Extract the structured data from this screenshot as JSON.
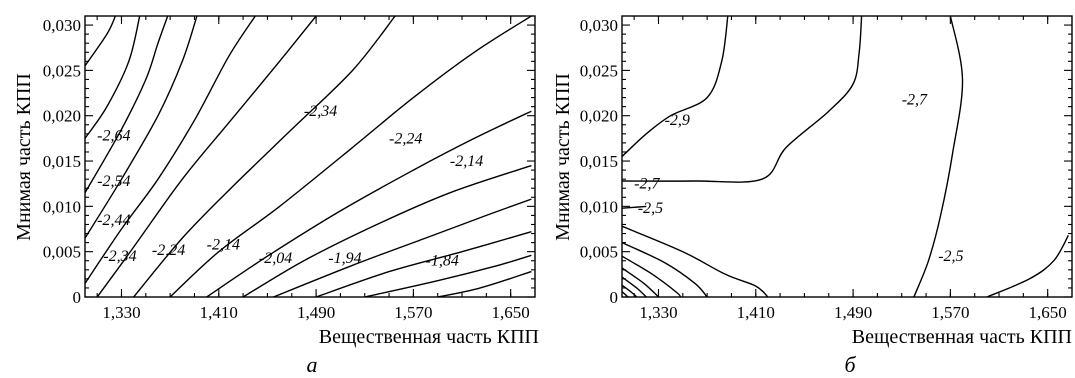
{
  "chart_data": [
    {
      "type": "contour",
      "panel_label": "а",
      "xlabel": "Вещественная часть КПП",
      "ylabel": "Мнимая часть КПП",
      "xlim": [
        1.3,
        1.67
      ],
      "ylim": [
        0,
        0.031
      ],
      "x_ticks": [
        "1,330",
        "1,410",
        "1,490",
        "1,570",
        "1,650"
      ],
      "x_tick_values": [
        1.33,
        1.41,
        1.49,
        1.57,
        1.65
      ],
      "y_ticks": [
        "0",
        "0,005",
        "0,010",
        "0,015",
        "0,020",
        "0,025",
        "0,030"
      ],
      "y_tick_values": [
        0,
        0.005,
        0.01,
        0.015,
        0.02,
        0.025,
        0.03
      ],
      "contours": [
        {
          "points": [
            [
              1.3,
              0.0255
            ],
            [
              1.318,
              0.029
            ],
            [
              1.325,
              0.031
            ]
          ]
        },
        {
          "points": [
            [
              1.3,
              0.0175
            ],
            [
              1.318,
              0.021
            ],
            [
              1.336,
              0.026
            ],
            [
              1.345,
              0.031
            ]
          ]
        },
        {
          "label": "-2,64",
          "label_at": [
            1.31,
            0.0178
          ],
          "points": [
            [
              1.3,
              0.0115
            ],
            [
              1.33,
              0.0185
            ],
            [
              1.35,
              0.024
            ],
            [
              1.36,
              0.028
            ],
            [
              1.368,
              0.031
            ]
          ]
        },
        {
          "label": "-2,54",
          "label_at": [
            1.31,
            0.0128
          ],
          "points": [
            [
              1.3,
              0.0065
            ],
            [
              1.33,
              0.013
            ],
            [
              1.36,
              0.02
            ],
            [
              1.38,
              0.026
            ],
            [
              1.392,
              0.031
            ]
          ]
        },
        {
          "label": "-2,44",
          "label_at": [
            1.31,
            0.0085
          ],
          "points": [
            [
              1.3,
              0.0015
            ],
            [
              1.33,
              0.0075
            ],
            [
              1.36,
              0.013
            ],
            [
              1.39,
              0.0195
            ],
            [
              1.418,
              0.0265
            ],
            [
              1.44,
              0.031
            ]
          ]
        },
        {
          "label": "-2,34",
          "label_at": [
            1.315,
            0.0045
          ],
          "points": [
            [
              1.31,
              0
            ],
            [
              1.34,
              0.0055
            ],
            [
              1.38,
              0.013
            ],
            [
              1.42,
              0.0195
            ],
            [
              1.46,
              0.026
            ],
            [
              1.49,
              0.031
            ]
          ]
        },
        {
          "label": "-2,24",
          "label_at": [
            1.355,
            0.0052
          ],
          "points": [
            [
              1.34,
              0
            ],
            [
              1.38,
              0.0065
            ],
            [
              1.42,
              0.012
            ],
            [
              1.47,
              0.0185
            ],
            [
              1.52,
              0.025
            ],
            [
              1.555,
              0.031
            ]
          ]
        },
        {
          "label": "-2,14",
          "label_at": [
            1.4,
            0.0058
          ],
          "points": [
            [
              1.37,
              0
            ],
            [
              1.41,
              0.005
            ],
            [
              1.46,
              0.01
            ],
            [
              1.52,
              0.0165
            ],
            [
              1.57,
              0.022
            ],
            [
              1.62,
              0.027
            ],
            [
              1.667,
              0.031
            ]
          ]
        },
        {
          "points": [
            [
              1.4,
              0
            ],
            [
              1.45,
              0.0045
            ],
            [
              1.51,
              0.0095
            ],
            [
              1.57,
              0.014
            ],
            [
              1.62,
              0.0175
            ],
            [
              1.667,
              0.0205
            ]
          ]
        },
        {
          "points": [
            [
              1.43,
              0
            ],
            [
              1.48,
              0.004
            ],
            [
              1.54,
              0.008
            ],
            [
              1.6,
              0.0115
            ],
            [
              1.667,
              0.0145
            ]
          ]
        },
        {
          "points": [
            [
              1.455,
              0
            ],
            [
              1.52,
              0.0035
            ],
            [
              1.58,
              0.0065
            ],
            [
              1.63,
              0.009
            ],
            [
              1.667,
              0.0108
            ]
          ]
        },
        {
          "points": [
            [
              1.49,
              0
            ],
            [
              1.55,
              0.0028
            ],
            [
              1.61,
              0.005
            ],
            [
              1.667,
              0.0072
            ]
          ]
        },
        {
          "points": [
            [
              1.53,
              0
            ],
            [
              1.59,
              0.0018
            ],
            [
              1.64,
              0.0035
            ],
            [
              1.667,
              0.0046
            ]
          ]
        },
        {
          "points": [
            [
              1.59,
              0
            ],
            [
              1.625,
              0.001
            ],
            [
              1.667,
              0.0028
            ]
          ]
        }
      ],
      "floating_labels": [
        {
          "text": "-2,34",
          "at": [
            1.48,
            0.0205
          ]
        },
        {
          "text": "-2,24",
          "at": [
            1.55,
            0.0175
          ]
        },
        {
          "text": "-2,14",
          "at": [
            1.6,
            0.015
          ]
        },
        {
          "text": "-2,04",
          "at": [
            1.443,
            0.0043
          ]
        },
        {
          "text": "-1,94",
          "at": [
            1.5,
            0.0043
          ]
        },
        {
          "text": "-1,84",
          "at": [
            1.58,
            0.004
          ]
        }
      ]
    },
    {
      "type": "contour",
      "panel_label": "б",
      "xlabel": "Вещественная часть КПП",
      "ylabel": "Мнимая часть КПП",
      "xlim": [
        1.3,
        1.67
      ],
      "ylim": [
        0,
        0.031
      ],
      "x_ticks": [
        "1,330",
        "1,410",
        "1,490",
        "1,570",
        "1,650"
      ],
      "x_tick_values": [
        1.33,
        1.41,
        1.49,
        1.57,
        1.65
      ],
      "y_ticks": [
        "0",
        "0,005",
        "0,010",
        "0,015",
        "0,020",
        "0,025",
        "0,030"
      ],
      "y_tick_values": [
        0,
        0.005,
        0.01,
        0.015,
        0.02,
        0.025,
        0.03
      ],
      "contours": [
        {
          "label": "-2,9",
          "label_at": [
            1.335,
            0.0195
          ],
          "points": [
            [
              1.3,
              0.0155
            ],
            [
              1.32,
              0.018
            ],
            [
              1.34,
              0.02
            ],
            [
              1.37,
              0.022
            ],
            [
              1.382,
              0.026
            ],
            [
              1.387,
              0.031
            ]
          ]
        },
        {
          "label": "-2,7",
          "label_at": [
            1.31,
            0.0125
          ],
          "points": [
            [
              1.3,
              0.0128
            ],
            [
              1.36,
              0.0128
            ],
            [
              1.415,
              0.013
            ],
            [
              1.435,
              0.0165
            ],
            [
              1.47,
              0.0205
            ],
            [
              1.49,
              0.0235
            ],
            [
              1.495,
              0.027
            ],
            [
              1.497,
              0.031
            ]
          ]
        },
        {
          "label": "-2,5",
          "label_at": [
            1.313,
            0.0098
          ],
          "points": [
            [
              1.3,
              0.0098
            ],
            [
              1.32,
              0.01
            ]
          ]
        },
        {
          "points": [
            [
              1.3,
              0.0078
            ],
            [
              1.35,
              0.005
            ],
            [
              1.385,
              0.0025
            ],
            [
              1.41,
              0.0012
            ],
            [
              1.42,
              0
            ]
          ]
        },
        {
          "points": [
            [
              1.3,
              0.006
            ],
            [
              1.335,
              0.0038
            ],
            [
              1.36,
              0.0015
            ],
            [
              1.37,
              0
            ]
          ]
        },
        {
          "points": [
            [
              1.3,
              0.0045
            ],
            [
              1.325,
              0.0025
            ],
            [
              1.345,
              0.0005
            ],
            [
              1.348,
              0
            ]
          ]
        },
        {
          "points": [
            [
              1.3,
              0.0032
            ],
            [
              1.318,
              0.0015
            ],
            [
              1.33,
              0
            ]
          ]
        },
        {
          "points": [
            [
              1.3,
              0.0022
            ],
            [
              1.312,
              0.001
            ],
            [
              1.32,
              0
            ]
          ]
        },
        {
          "points": [
            [
              1.3,
              0.0013
            ],
            [
              1.308,
              0.0005
            ],
            [
              1.312,
              0
            ]
          ]
        },
        {
          "points": [
            [
              1.3,
              0.0006
            ],
            [
              1.305,
              0
            ]
          ]
        },
        {
          "label": "-2,5",
          "label_at": [
            1.56,
            0.0045
          ],
          "points": [
            [
              1.57,
              0.031
            ],
            [
              1.58,
              0.024
            ],
            [
              1.572,
              0.016
            ],
            [
              1.562,
              0.009
            ],
            [
              1.552,
              0.004
            ],
            [
              1.54,
              0
            ]
          ]
        },
        {
          "points": [
            [
              1.6,
              0
            ],
            [
              1.635,
              0.002
            ],
            [
              1.655,
              0.004
            ],
            [
              1.667,
              0.0068
            ]
          ]
        }
      ],
      "floating_labels": [
        {
          "text": "-2,7",
          "at": [
            1.53,
            0.0218
          ]
        }
      ]
    }
  ]
}
